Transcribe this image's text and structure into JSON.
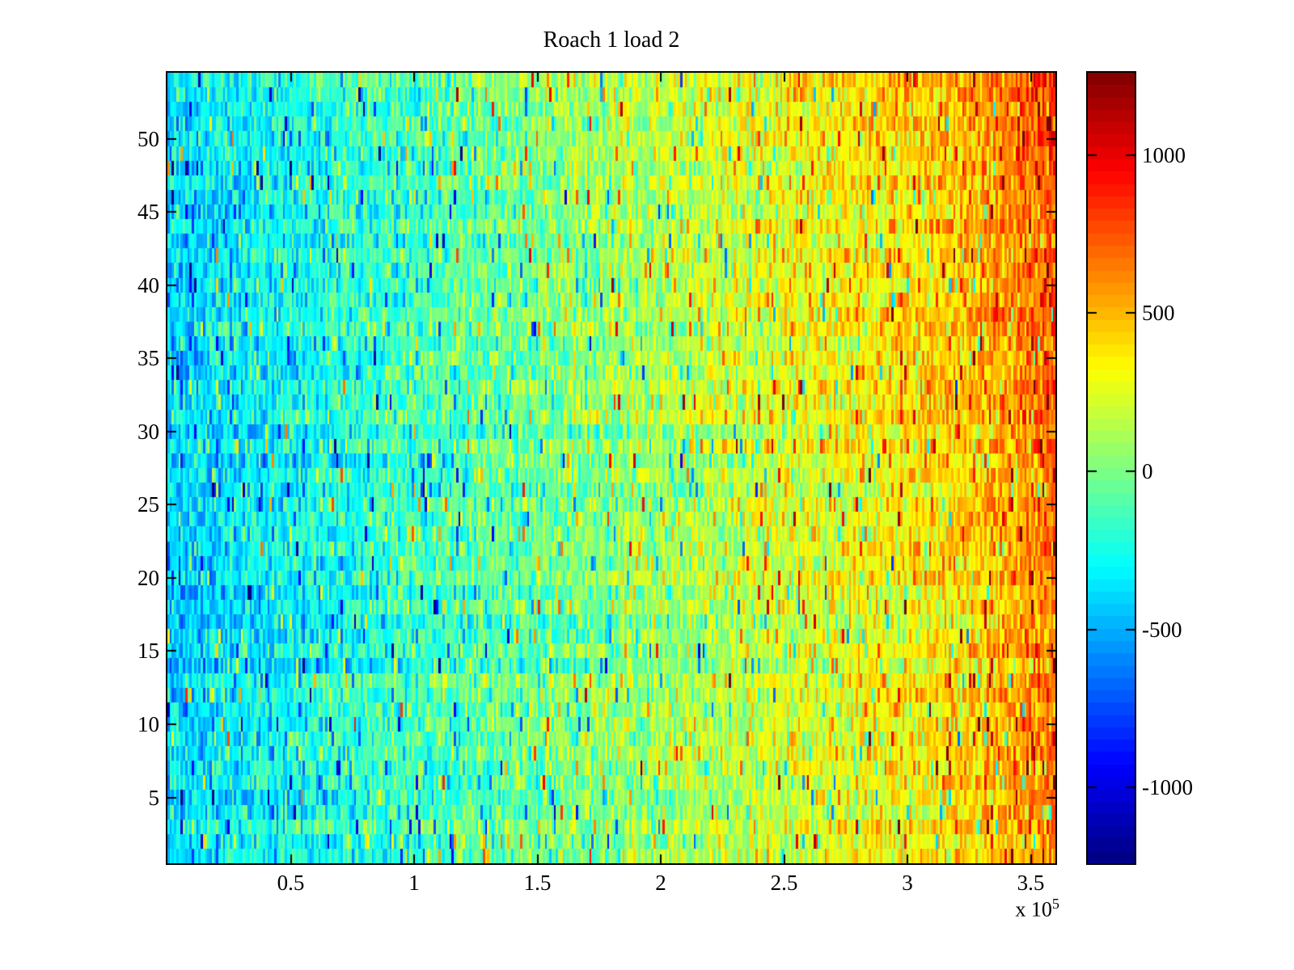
{
  "title": "Roach 1 load 2",
  "chart_data": {
    "type": "heatmap",
    "title": "Roach 1 load 2",
    "x_axis": {
      "tick_labels": [
        "0.5",
        "1",
        "1.5",
        "2",
        "2.5",
        "3",
        "3.5"
      ],
      "tick_values": [
        0.5,
        1,
        1.5,
        2,
        2.5,
        3,
        3.5
      ],
      "min": 0,
      "max": 3.6,
      "unit_scale": 100000,
      "multiplier_text": "x 10",
      "multiplier_exponent": "5"
    },
    "y_axis": {
      "tick_labels": [
        "5",
        "10",
        "15",
        "20",
        "25",
        "30",
        "35",
        "40",
        "45",
        "50"
      ],
      "tick_values": [
        5,
        10,
        15,
        20,
        25,
        30,
        35,
        40,
        45,
        50
      ],
      "min": 0.5,
      "max": 54.5
    },
    "colorbar": {
      "tick_labels": [
        "1000",
        "500",
        "0",
        "-500",
        "-1000"
      ],
      "tick_values": [
        1000,
        500,
        0,
        -500,
        -1000
      ],
      "vmin": -1240,
      "vmax": 1260,
      "colormap": "jet",
      "levels": 64
    },
    "heatmap": {
      "rows": 54,
      "cols": 400,
      "pattern": {
        "seed": 20240601,
        "left_mean": -400,
        "right_mean": 520,
        "right_edge_boost": 200,
        "right_edge_start": 0.84,
        "row_tilt_at_right": 90,
        "row_offset_std": 35,
        "noise_std": 170,
        "spike_prob": 0.05,
        "spike_min": 300,
        "spike_max": 900
      },
      "summary": "Noisy 54-row signal image over x = 0 to 3.6e5; mean value rises from about -400 (cyan/blue) at the left edge to about +550 (orange) at the right edge, with heavy vertical-stripe noise (std ~170), scattered positive/negative spikes, and the strongest reds along the right edge and upper-right corner."
    }
  }
}
